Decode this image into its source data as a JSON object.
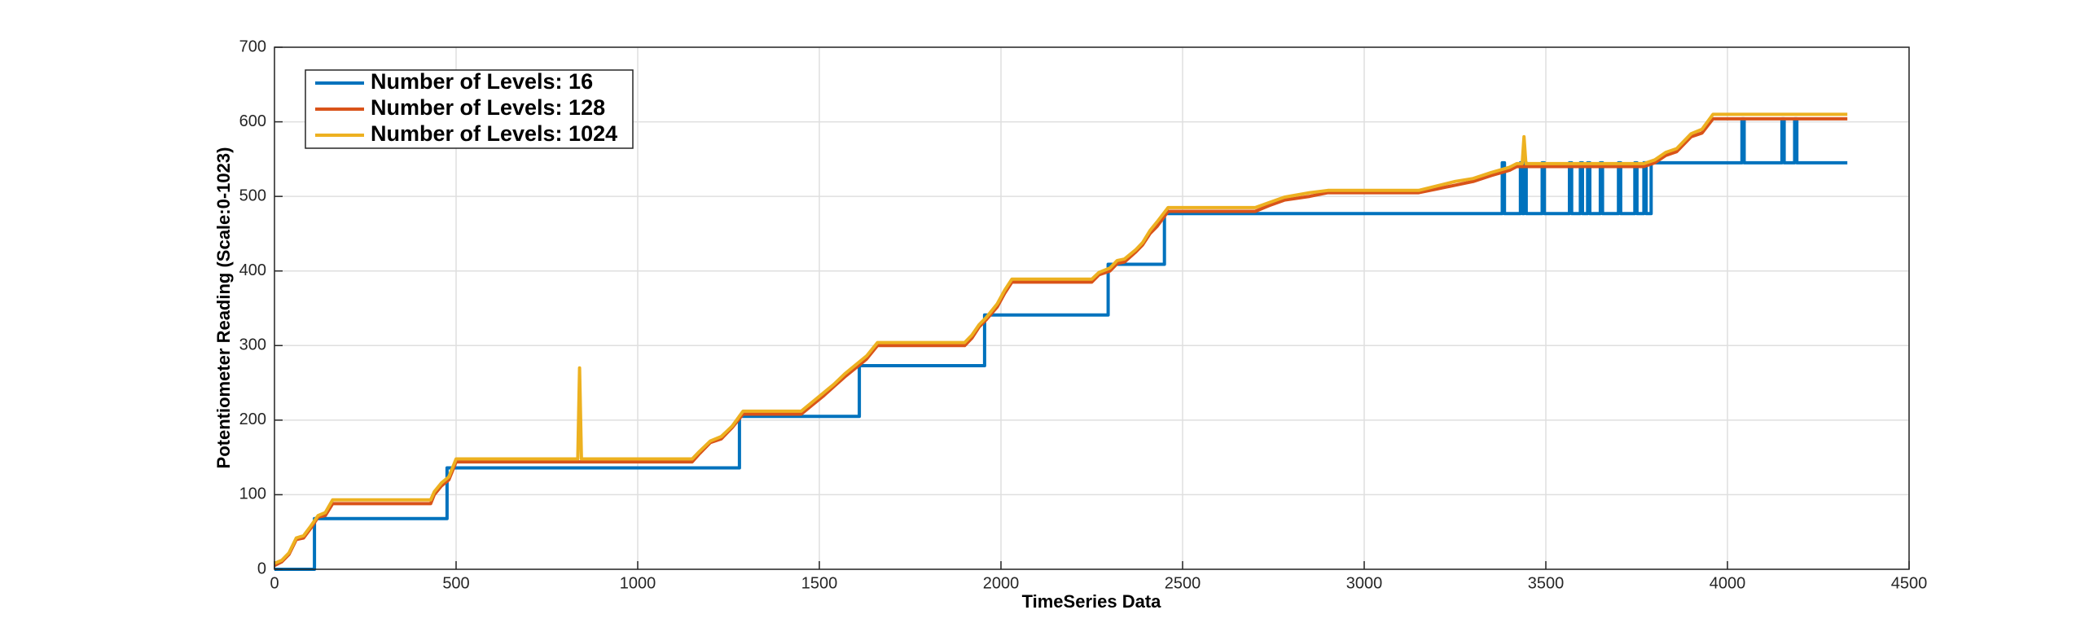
{
  "chart_data": {
    "type": "line",
    "xlabel": "TimeSeries Data",
    "ylabel": "Potentiometer Reading (Scale:0-1023)",
    "xlim": [
      0,
      4500
    ],
    "ylim": [
      0,
      700
    ],
    "xticks": [
      0,
      500,
      1000,
      1500,
      2000,
      2500,
      3000,
      3500,
      4000,
      4500
    ],
    "yticks": [
      0,
      100,
      200,
      300,
      400,
      500,
      600,
      700
    ],
    "grid": true,
    "legend": "upper-left",
    "series": [
      {
        "name": "Number of Levels: 16",
        "color": "#0072BD",
        "x": [
          0,
          110,
          110,
          475,
          475,
          1280,
          1280,
          1610,
          1610,
          1955,
          1955,
          2295,
          2295,
          2450,
          2450,
          3380,
          3380,
          3386,
          3386,
          3430,
          3430,
          3436,
          3436,
          3440,
          3440,
          3446,
          3446,
          3490,
          3490,
          3496,
          3496,
          3565,
          3565,
          3571,
          3571,
          3595,
          3595,
          3601,
          3601,
          3615,
          3615,
          3621,
          3621,
          3650,
          3650,
          3656,
          3656,
          3700,
          3700,
          3706,
          3706,
          3745,
          3745,
          3751,
          3751,
          3770,
          3770,
          3776,
          3776,
          3790,
          3790,
          4040,
          4040,
          4046,
          4046,
          4150,
          4150,
          4156,
          4156,
          4185,
          4185,
          4191,
          4191,
          4330
        ],
        "values": [
          0,
          0,
          68,
          68,
          136,
          136,
          205,
          205,
          273,
          273,
          341,
          341,
          409,
          409,
          477,
          477,
          545,
          545,
          477,
          477,
          545,
          545,
          477,
          477,
          545,
          545,
          477,
          477,
          545,
          545,
          477,
          477,
          545,
          545,
          477,
          477,
          545,
          545,
          477,
          477,
          545,
          545,
          477,
          477,
          545,
          545,
          477,
          477,
          545,
          545,
          477,
          477,
          545,
          545,
          477,
          477,
          545,
          545,
          477,
          477,
          545,
          545,
          604,
          604,
          545,
          545,
          604,
          604,
          545,
          545,
          604,
          604,
          545,
          545
        ]
      },
      {
        "name": "Number of Levels: 128",
        "color": "#D95319",
        "x": [
          0,
          20,
          40,
          60,
          80,
          100,
          120,
          140,
          160,
          430,
          440,
          460,
          480,
          500,
          1150,
          1170,
          1200,
          1230,
          1260,
          1290,
          1450,
          1480,
          1510,
          1540,
          1570,
          1600,
          1630,
          1660,
          1900,
          1920,
          1940,
          1960,
          1990,
          2010,
          2030,
          2250,
          2270,
          2300,
          2320,
          2340,
          2370,
          2390,
          2410,
          2430,
          2460,
          2700,
          2740,
          2780,
          2850,
          2900,
          3150,
          3200,
          3250,
          3300,
          3350,
          3400,
          3420,
          3770,
          3800,
          3830,
          3860,
          3900,
          3930,
          3960,
          4330
        ],
        "values": [
          5,
          10,
          20,
          40,
          42,
          55,
          70,
          72,
          88,
          88,
          100,
          112,
          120,
          144,
          144,
          155,
          170,
          175,
          190,
          208,
          208,
          220,
          232,
          245,
          258,
          270,
          282,
          300,
          300,
          310,
          325,
          335,
          352,
          370,
          385,
          385,
          395,
          400,
          410,
          412,
          425,
          435,
          450,
          460,
          480,
          480,
          488,
          495,
          500,
          505,
          505,
          510,
          515,
          520,
          528,
          535,
          540,
          540,
          545,
          555,
          560,
          580,
          585,
          604,
          604
        ]
      },
      {
        "name": "Number of Levels: 1024",
        "color": "#EDB120",
        "x": [
          0,
          20,
          40,
          60,
          80,
          100,
          120,
          140,
          160,
          430,
          440,
          460,
          480,
          500,
          835,
          840,
          845,
          1150,
          1170,
          1200,
          1230,
          1260,
          1290,
          1450,
          1480,
          1510,
          1540,
          1570,
          1600,
          1630,
          1660,
          1900,
          1920,
          1940,
          1960,
          1990,
          2010,
          2030,
          2250,
          2270,
          2300,
          2320,
          2340,
          2370,
          2390,
          2410,
          2430,
          2460,
          2700,
          2740,
          2780,
          2850,
          2900,
          3150,
          3200,
          3250,
          3300,
          3350,
          3400,
          3420,
          3435,
          3440,
          3445,
          3770,
          3800,
          3830,
          3860,
          3900,
          3930,
          3960,
          4330
        ],
        "values": [
          8,
          12,
          22,
          42,
          45,
          58,
          72,
          76,
          93,
          93,
          104,
          116,
          124,
          148,
          148,
          270,
          148,
          148,
          158,
          172,
          178,
          192,
          212,
          212,
          224,
          236,
          248,
          262,
          274,
          286,
          304,
          304,
          314,
          328,
          338,
          356,
          374,
          389,
          389,
          398,
          404,
          414,
          416,
          428,
          438,
          454,
          466,
          485,
          485,
          492,
          499,
          505,
          508,
          508,
          514,
          520,
          524,
          532,
          539,
          544,
          544,
          580,
          544,
          544,
          549,
          559,
          564,
          584,
          590,
          610,
          610
        ]
      }
    ]
  }
}
